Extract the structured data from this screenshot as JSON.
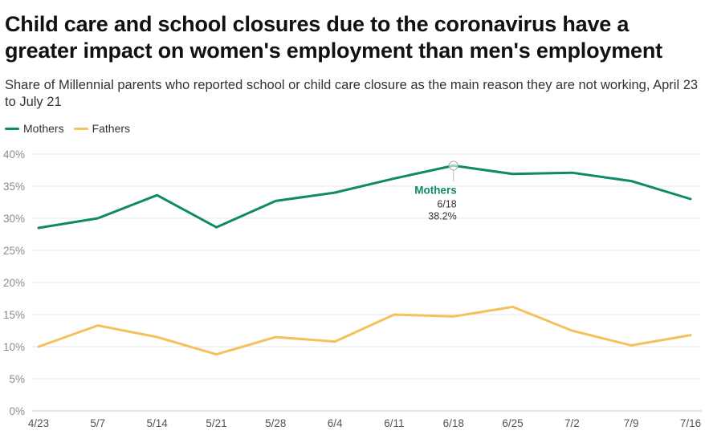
{
  "title": "Child care and school closures due to the coronavirus have a greater impact on women's employment than men's employment",
  "subtitle": "Share of Millennial parents who reported school or child care closure as the main reason they are not working, April 23 to July 21",
  "chart_data": {
    "type": "line",
    "categories": [
      "4/23",
      "5/7",
      "5/14",
      "5/21",
      "5/28",
      "6/4",
      "6/11",
      "6/18",
      "6/25",
      "7/2",
      "7/9",
      "7/16"
    ],
    "series": [
      {
        "name": "Mothers",
        "color": "#0e8a6a",
        "values": [
          28.5,
          30.0,
          33.6,
          28.6,
          32.7,
          34.0,
          36.2,
          38.2,
          36.9,
          37.1,
          35.8,
          33.0
        ]
      },
      {
        "name": "Fathers",
        "color": "#f5c15a",
        "values": [
          10.0,
          13.3,
          11.5,
          8.8,
          11.5,
          10.8,
          15.0,
          14.7,
          16.2,
          12.5,
          10.2,
          11.8
        ]
      }
    ],
    "y_ticks": [
      "0%",
      "5%",
      "10%",
      "15%",
      "20%",
      "25%",
      "30%",
      "35%",
      "40%"
    ],
    "ylim": [
      0,
      40
    ],
    "grid": true,
    "legend_position": "top-left",
    "annotation": {
      "series": "Mothers",
      "x": "6/18",
      "value_label": "38.2%"
    }
  }
}
